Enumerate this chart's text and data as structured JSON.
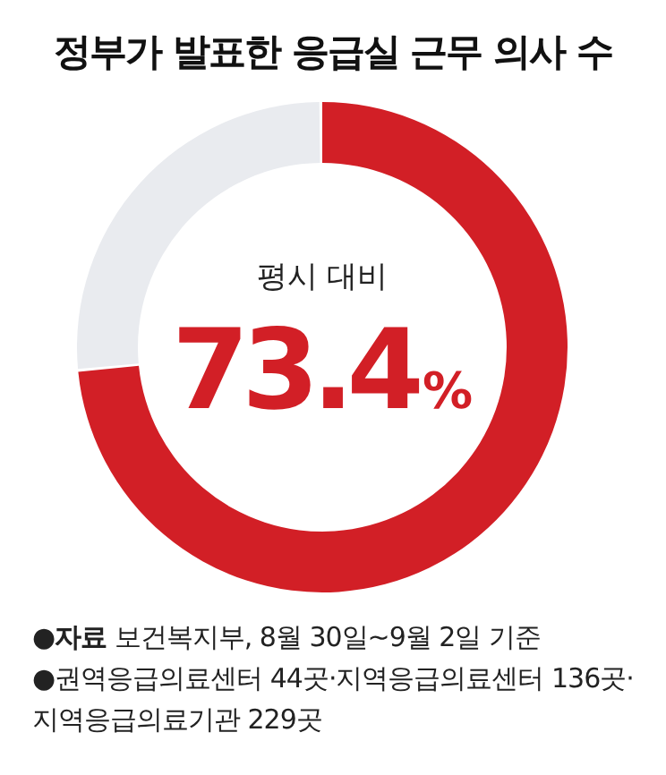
{
  "chart_data": {
    "type": "donut",
    "title": "정부가 발표한 응급실 근무 의사 수",
    "categories": [
      null,
      null
    ],
    "values": [
      73.4,
      26.6
    ],
    "colors": [
      "#d21f26",
      "#e9ebef"
    ],
    "value_labels": [
      "73.4%",
      null
    ],
    "annotations": [
      "평시 대비",
      "●자료 보건복지부, 8월 30일~9월 2일 기준",
      "●권역응급의료센터 44곳·지역응급의료센터 136곳·지역응급의료기관 229곳"
    ]
  }
}
